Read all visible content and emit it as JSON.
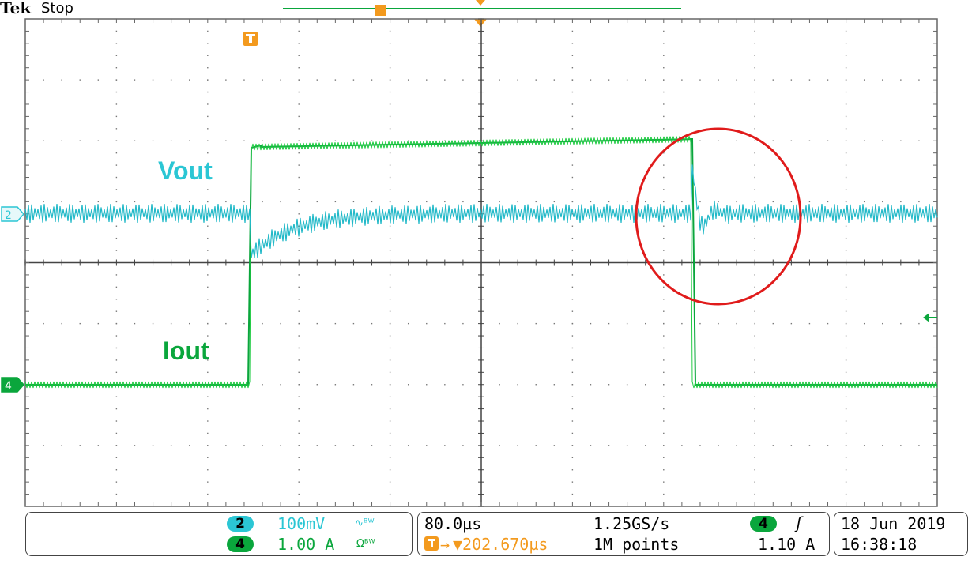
{
  "header": {
    "brand": "Tek",
    "run_state": "Stop"
  },
  "traces": {
    "vout_label": "Vout",
    "iout_label": "Iout"
  },
  "channels": [
    {
      "number": "2",
      "scale": "100mV",
      "coupling_icon": "ac-coupling-bw-limit-icon",
      "color": "#2bc6d4"
    },
    {
      "number": "4",
      "scale": "1.00 A",
      "coupling_icon": "ohm-bw-limit-icon",
      "color": "#0aa63c"
    }
  ],
  "timebase": {
    "time_per_div": "80.0µs",
    "sample_rate": "1.25GS/s",
    "trigger_position": "▼202.670µs",
    "record_length": "1M points"
  },
  "trigger": {
    "source": "4",
    "slope_icon": "rising-edge-icon",
    "level": "1.10 A"
  },
  "datetime": {
    "date": "18 Jun  2019",
    "time": "16:38:18"
  },
  "colors": {
    "vout": "#2bc6d4",
    "iout": "#0aa63c",
    "trigger_marker": "#f39a1e",
    "highlight_circle": "#e01b1b",
    "grid": "#555555"
  }
}
